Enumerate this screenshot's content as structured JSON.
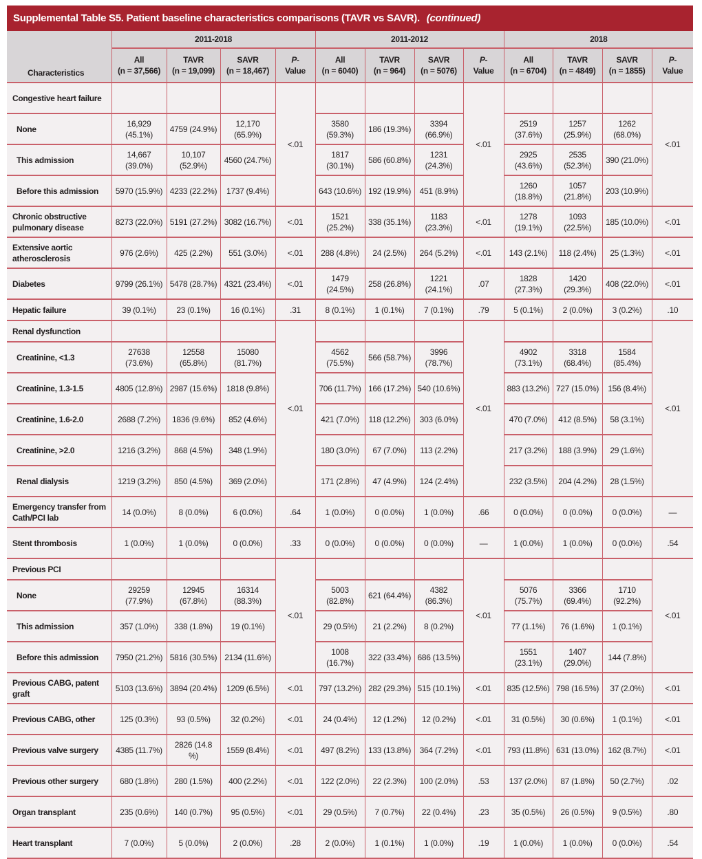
{
  "title": {
    "prefix": "Supplemental Table S5.",
    "text": "Patient baseline characteristics comparisons (TAVR vs SAVR).",
    "continued": "(continued)"
  },
  "header": {
    "characteristics": "Characteristics",
    "groups": [
      "2011-2018",
      "2011-2012",
      "2018"
    ],
    "columns": [
      {
        "label": "All",
        "n": "(n = 37,566)"
      },
      {
        "label": "TAVR",
        "n": "(n = 19,099)"
      },
      {
        "label": "SAVR",
        "n": "(n = 18,467)"
      },
      {
        "label": "P-",
        "n": "Value"
      },
      {
        "label": "All",
        "n": "(n = 6040)"
      },
      {
        "label": "TAVR",
        "n": "(n = 964)"
      },
      {
        "label": "SAVR",
        "n": "(n = 5076)"
      },
      {
        "label": "P-",
        "n": "Value"
      },
      {
        "label": "All",
        "n": "(n = 6704)"
      },
      {
        "label": "TAVR",
        "n": "(n = 4849)"
      },
      {
        "label": "SAVR",
        "n": "(n = 1855)"
      },
      {
        "label": "P-",
        "n": "Value"
      }
    ]
  },
  "groups": [
    {
      "label": "Congestive heart failure",
      "p": [
        "<.01",
        "<.01",
        "<.01"
      ],
      "rows": [
        {
          "label": "None",
          "values": [
            "16,929 (45.1%)",
            "4759 (24.9%)",
            "12,170 (65.9%)",
            "3580 (59.3%)",
            "186 (19.3%)",
            "3394 (66.9%)",
            "2519 (37.6%)",
            "1257 (25.9%)",
            "1262 (68.0%)"
          ]
        },
        {
          "label": "This admission",
          "values": [
            "14,667 (39.0%)",
            "10,107 (52.9%)",
            "4560 (24.7%)",
            "1817 (30.1%)",
            "586 (60.8%)",
            "1231 (24.3%)",
            "2925 (43.6%)",
            "2535 (52.3%)",
            "390 (21.0%)"
          ]
        },
        {
          "label": "Before this admission",
          "values": [
            "5970 (15.9%)",
            "4233 (22.2%)",
            "1737 (9.4%)",
            "643 (10.6%)",
            "192 (19.9%)",
            "451 (8.9%)",
            "1260 (18.8%)",
            "1057 (21.8%)",
            "203 (10.9%)"
          ]
        }
      ]
    },
    {
      "label": "Chronic obstructive pulmonary disease",
      "values": [
        "8273 (22.0%)",
        "5191 (27.2%)",
        "3082 (16.7%)",
        "1521 (25.2%)",
        "338 (35.1%)",
        "1183 (23.3%)",
        "1278 (19.1%)",
        "1093 (22.5%)",
        "185 (10.0%)"
      ],
      "p": [
        "<.01",
        "<.01",
        "<.01"
      ]
    },
    {
      "label": "Extensive aortic atherosclerosis",
      "values": [
        "976 (2.6%)",
        "425 (2.2%)",
        "551 (3.0%)",
        "288 (4.8%)",
        "24 (2.5%)",
        "264 (5.2%)",
        "143 (2.1%)",
        "118 (2.4%)",
        "25 (1.3%)"
      ],
      "p": [
        "<.01",
        "<.01",
        "<.01"
      ]
    },
    {
      "label": "Diabetes",
      "values": [
        "9799 (26.1%)",
        "5478 (28.7%)",
        "4321 (23.4%)",
        "1479 (24.5%)",
        "258 (26.8%)",
        "1221 (24.1%)",
        "1828 (27.3%)",
        "1420 (29.3%)",
        "408 (22.0%)"
      ],
      "p": [
        "<.01",
        ".07",
        "<.01"
      ]
    },
    {
      "label": "Hepatic failure",
      "single": true,
      "values": [
        "39 (0.1%)",
        "23 (0.1%)",
        "16 (0.1%)",
        "8 (0.1%)",
        "1 (0.1%)",
        "7 (0.1%)",
        "5 (0.1%)",
        "2 (0.0%)",
        "3 (0.2%)"
      ],
      "p": [
        ".31",
        ".79",
        ".10"
      ]
    },
    {
      "label": "Renal dysfunction",
      "p": [
        "<.01",
        "<.01",
        "<.01"
      ],
      "headerSingle": true,
      "rows": [
        {
          "label": "Creatinine, <1.3",
          "values": [
            "27638 (73.6%)",
            "12558 (65.8%)",
            "15080 (81.7%)",
            "4562 (75.5%)",
            "566 (58.7%)",
            "3996 (78.7%)",
            "4902 (73.1%)",
            "3318 (68.4%)",
            "1584 (85.4%)"
          ]
        },
        {
          "label": "Creatinine, 1.3-1.5",
          "values": [
            "4805 (12.8%)",
            "2987 (15.6%)",
            "1818 (9.8%)",
            "706 (11.7%)",
            "166 (17.2%)",
            "540 (10.6%)",
            "883 (13.2%)",
            "727 (15.0%)",
            "156 (8.4%)"
          ]
        },
        {
          "label": "Creatinine, 1.6-2.0",
          "values": [
            "2688 (7.2%)",
            "1836 (9.6%)",
            "852 (4.6%)",
            "421 (7.0%)",
            "118 (12.2%)",
            "303 (6.0%)",
            "470 (7.0%)",
            "412 (8.5%)",
            "58 (3.1%)"
          ]
        },
        {
          "label": "Creatinine, >2.0",
          "values": [
            "1216 (3.2%)",
            "868 (4.5%)",
            "348 (1.9%)",
            "180 (3.0%)",
            "67 (7.0%)",
            "113 (2.2%)",
            "217 (3.2%)",
            "188 (3.9%)",
            "29 (1.6%)"
          ]
        },
        {
          "label": "Renal dialysis",
          "values": [
            "1219 (3.2%)",
            "850 (4.5%)",
            "369 (2.0%)",
            "171 (2.8%)",
            "47 (4.9%)",
            "124 (2.4%)",
            "232 (3.5%)",
            "204 (4.2%)",
            "28 (1.5%)"
          ]
        }
      ]
    },
    {
      "label": "Emergency transfer from Cath/PCI lab",
      "values": [
        "14 (0.0%)",
        "8 (0.0%)",
        "6 (0.0%)",
        "1 (0.0%)",
        "0 (0.0%)",
        "1 (0.0%)",
        "0 (0.0%)",
        "0 (0.0%)",
        "0 (0.0%)"
      ],
      "p": [
        ".64",
        ".66",
        "—"
      ]
    },
    {
      "label": "Stent thrombosis",
      "values": [
        "1 (0.0%)",
        "1 (0.0%)",
        "0 (0.0%)",
        "0 (0.0%)",
        "0 (0.0%)",
        "0 (0.0%)",
        "1 (0.0%)",
        "1 (0.0%)",
        "0 (0.0%)"
      ],
      "p": [
        ".33",
        "—",
        ".54"
      ]
    },
    {
      "label": "Previous PCI",
      "p": [
        "<.01",
        "<.01",
        "<.01"
      ],
      "headerSingle": true,
      "rows": [
        {
          "label": "None",
          "values": [
            "29259 (77.9%)",
            "12945 (67.8%)",
            "16314 (88.3%)",
            "5003 (82.8%)",
            "621 (64.4%)",
            "4382 (86.3%)",
            "5076 (75.7%)",
            "3366 (69.4%)",
            "1710 (92.2%)"
          ]
        },
        {
          "label": "This admission",
          "values": [
            "357 (1.0%)",
            "338 (1.8%)",
            "19 (0.1%)",
            "29 (0.5%)",
            "21 (2.2%)",
            "8 (0.2%)",
            "77 (1.1%)",
            "76 (1.6%)",
            "1 (0.1%)"
          ]
        },
        {
          "label": "Before this admission",
          "values": [
            "7950 (21.2%)",
            "5816 (30.5%)",
            "2134 (11.6%)",
            "1008 (16.7%)",
            "322 (33.4%)",
            "686 (13.5%)",
            "1551 (23.1%)",
            "1407 (29.0%)",
            "144 (7.8%)"
          ]
        }
      ]
    },
    {
      "label": "Previous CABG, patent graft",
      "values": [
        "5103 (13.6%)",
        "3894 (20.4%)",
        "1209 (6.5%)",
        "797 (13.2%)",
        "282 (29.3%)",
        "515 (10.1%)",
        "835 (12.5%)",
        "798 (16.5%)",
        "37 (2.0%)"
      ],
      "p": [
        "<.01",
        "<.01",
        "<.01"
      ]
    },
    {
      "label": "Previous CABG, other",
      "values": [
        "125 (0.3%)",
        "93 (0.5%)",
        "32 (0.2%)",
        "24 (0.4%)",
        "12 (1.2%)",
        "12 (0.2%)",
        "31 (0.5%)",
        "30 (0.6%)",
        "1 (0.1%)"
      ],
      "p": [
        "<.01",
        "<.01",
        "<.01"
      ]
    },
    {
      "label": "Previous valve surgery",
      "values": [
        "4385 (11.7%)",
        "2826 (14.8 %)",
        "1559 (8.4%)",
        "497 (8.2%)",
        "133 (13.8%)",
        "364 (7.2%)",
        "793 (11.8%)",
        "631 (13.0%)",
        "162 (8.7%)"
      ],
      "p": [
        "<.01",
        "<.01",
        "<.01"
      ]
    },
    {
      "label": "Previous other surgery",
      "values": [
        "680 (1.8%)",
        "280 (1.5%)",
        "400 (2.2%)",
        "122 (2.0%)",
        "22 (2.3%)",
        "100 (2.0%)",
        "137 (2.0%)",
        "87 (1.8%)",
        "50 (2.7%)"
      ],
      "p": [
        "<.01",
        ".53",
        ".02"
      ]
    },
    {
      "label": "Organ transplant",
      "values": [
        "235 (0.6%)",
        "140 (0.7%)",
        "95 (0.5%)",
        "29 (0.5%)",
        "7 (0.7%)",
        "22 (0.4%)",
        "35 (0.5%)",
        "26 (0.5%)",
        "9 (0.5%)"
      ],
      "p": [
        "<.01",
        ".23",
        ".80"
      ]
    },
    {
      "label": "Heart transplant",
      "values": [
        "7 (0.0%)",
        "5 (0.0%)",
        "2 (0.0%)",
        "2 (0.0%)",
        "1 (0.1%)",
        "1 (0.0%)",
        "1 (0.0%)",
        "1 (0.0%)",
        "0 (0.0%)"
      ],
      "p": [
        ".28",
        ".19",
        ".54"
      ]
    }
  ]
}
